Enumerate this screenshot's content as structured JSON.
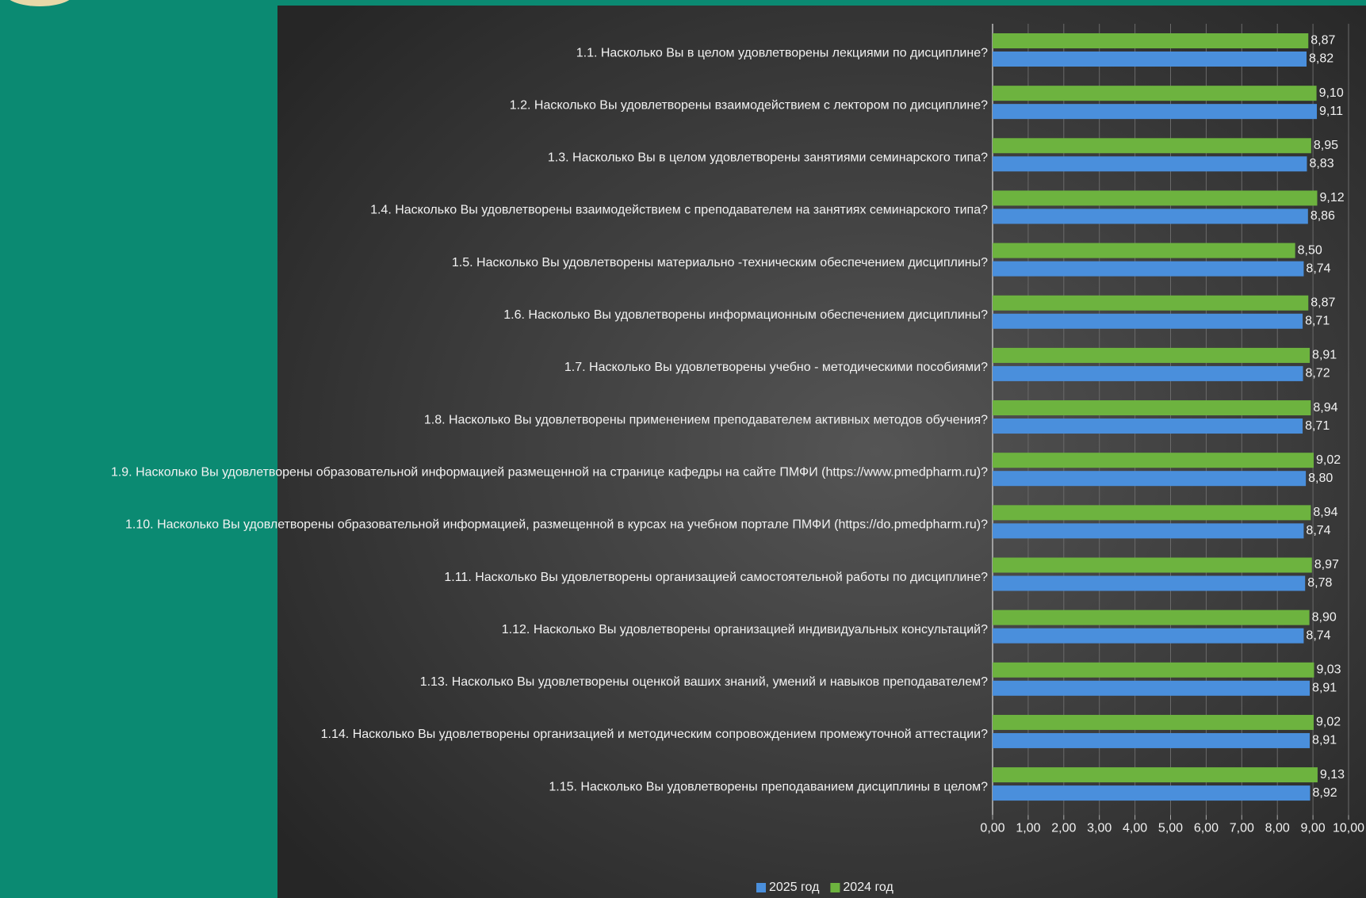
{
  "chart_data": {
    "type": "bar",
    "orientation": "horizontal",
    "categories": [
      "1.1. Насколько Вы в целом удовлетворены лекциями по дисциплине?",
      "1.2. Насколько Вы удовлетворены взаимодействием с лектором по дисциплине?",
      "1.3. Насколько Вы в целом удовлетворены занятиями семинарского типа?",
      "1.4. Насколько Вы удовлетворены взаимодействием с преподавателем на занятиях семинарского типа?",
      "1.5. Насколько Вы удовлетворены материально -техническим обеспечением дисциплины?",
      "1.6. Насколько Вы удовлетворены информационным обеспечением дисциплины?",
      "1.7. Насколько Вы удовлетворены учебно - методическими пособиями?",
      "1.8. Насколько Вы удовлетворены применением преподавателем активных методов обучения?",
      "1.9. Насколько Вы удовлетворены образовательной информацией размещенной на странице кафедры на сайте ПМФИ (https://www.pmedpharm.ru)?",
      "1.10. Насколько Вы удовлетворены образовательной информацией, размещенной в курсах на учебном портале ПМФИ (https://do.pmedpharm.ru)?",
      "1.11. Насколько Вы удовлетворены организацией самостоятельной работы по дисциплине?",
      "1.12. Насколько Вы удовлетворены организацией индивидуальных консультаций?",
      "1.13. Насколько Вы удовлетворены оценкой ваших знаний, умений и навыков преподавателем?",
      "1.14. Насколько Вы удовлетворены организацией и методическим сопровождением промежуточной аттестации?",
      "1.15. Насколько Вы удовлетворены преподаванием дисциплины в целом?"
    ],
    "series": [
      {
        "name": "2025 год",
        "color": "#4a8fdc",
        "values": [
          8.82,
          9.11,
          8.83,
          8.86,
          8.74,
          8.71,
          8.72,
          8.71,
          8.8,
          8.74,
          8.78,
          8.74,
          8.91,
          8.91,
          8.92
        ],
        "value_labels": [
          "8,82",
          "9,11",
          "8,83",
          "8,86",
          "8,74",
          "8,71",
          "8,72",
          "8,71",
          "8,80",
          "8,74",
          "8,78",
          "8,74",
          "8,91",
          "8,91",
          "8,92"
        ]
      },
      {
        "name": "2024 год",
        "color": "#6db33f",
        "values": [
          8.87,
          9.1,
          8.95,
          9.12,
          8.5,
          8.87,
          8.91,
          8.94,
          9.02,
          8.94,
          8.97,
          8.9,
          9.03,
          9.02,
          9.13
        ],
        "value_labels": [
          "8,87",
          "9,10",
          "8,95",
          "9,12",
          "8,50",
          "8,87",
          "8,91",
          "8,94",
          "9,02",
          "8,94",
          "8,97",
          "8,90",
          "9,03",
          "9,02",
          "9,13"
        ]
      }
    ],
    "xlim": [
      0,
      10
    ],
    "xticks": [
      {
        "value": 0,
        "label": "0,00"
      },
      {
        "value": 1,
        "label": "1,00"
      },
      {
        "value": 2,
        "label": "2,00"
      },
      {
        "value": 3,
        "label": "3,00"
      },
      {
        "value": 4,
        "label": "4,00"
      },
      {
        "value": 5,
        "label": "5,00"
      },
      {
        "value": 6,
        "label": "6,00"
      },
      {
        "value": 7,
        "label": "7,00"
      },
      {
        "value": 8,
        "label": "8,00"
      },
      {
        "value": 9,
        "label": "9,00"
      },
      {
        "value": 10,
        "label": "10,00"
      }
    ],
    "grid": true,
    "legend": "bottom"
  }
}
